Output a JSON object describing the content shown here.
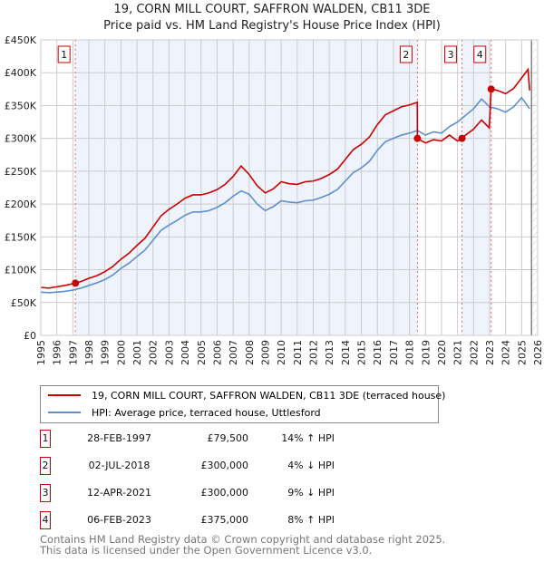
{
  "chart_data": {
    "type": "line",
    "title": "19, CORN MILL COURT, SAFFRON WALDEN, CB11 3DE",
    "subtitle": "Price paid vs. HM Land Registry's House Price Index (HPI)",
    "xlim": [
      1995,
      2026
    ],
    "ylim": [
      0,
      450000
    ],
    "x_ticks": [
      "1995",
      "1996",
      "1997",
      "1998",
      "1999",
      "2000",
      "2001",
      "2002",
      "2003",
      "2004",
      "2005",
      "2006",
      "2007",
      "2008",
      "2009",
      "2010",
      "2011",
      "2012",
      "2013",
      "2014",
      "2015",
      "2016",
      "2017",
      "2018",
      "2019",
      "2020",
      "2021",
      "2022",
      "2023",
      "2024",
      "2025",
      "2026"
    ],
    "y_ticks": [
      {
        "v": 0,
        "label": "£0"
      },
      {
        "v": 50000,
        "label": "£50K"
      },
      {
        "v": 100000,
        "label": "£100K"
      },
      {
        "v": 150000,
        "label": "£150K"
      },
      {
        "v": 200000,
        "label": "£200K"
      },
      {
        "v": 250000,
        "label": "£250K"
      },
      {
        "v": 300000,
        "label": "£300K"
      },
      {
        "v": 350000,
        "label": "£350K"
      },
      {
        "v": 400000,
        "label": "£400K"
      },
      {
        "v": 450000,
        "label": "£450K"
      }
    ],
    "data_end": 2025.5,
    "series": [
      {
        "name": "19, CORN MILL COURT, SAFFRON WALDEN, CB11 3DE (terraced house)",
        "color": "#cc0000",
        "x": [
          1995,
          1995.5,
          1996,
          1996.5,
          1997.15,
          1997.5,
          1998,
          1998.5,
          1999,
          1999.5,
          2000,
          2000.5,
          2001,
          2001.5,
          2002,
          2002.5,
          2003,
          2003.5,
          2004,
          2004.5,
          2005,
          2005.5,
          2006,
          2006.5,
          2007,
          2007.5,
          2008,
          2008.5,
          2009,
          2009.5,
          2010,
          2010.5,
          2011,
          2011.5,
          2012,
          2012.5,
          2013,
          2013.5,
          2014,
          2014.5,
          2015,
          2015.5,
          2016,
          2016.5,
          2017,
          2017.5,
          2018,
          2018.49,
          2018.5,
          2019,
          2019.5,
          2020,
          2020.5,
          2021,
          2021.28,
          2021.5,
          2022,
          2022.5,
          2022.98,
          2023.1,
          2023.5,
          2024,
          2024.5,
          2025,
          2025.4,
          2025.5
        ],
        "y": [
          73000,
          72000,
          74000,
          76000,
          79500,
          82000,
          87000,
          91000,
          97000,
          105000,
          116000,
          125000,
          137000,
          148000,
          165000,
          182000,
          192000,
          200000,
          209000,
          214000,
          214000,
          217000,
          222000,
          230000,
          242000,
          258000,
          245000,
          228000,
          217000,
          223000,
          234000,
          231000,
          230000,
          234000,
          235000,
          239000,
          245000,
          253000,
          268000,
          283000,
          291000,
          302000,
          321000,
          336000,
          342000,
          348000,
          351000,
          355000,
          300000,
          293000,
          298000,
          296000,
          305000,
          296000,
          300000,
          305000,
          314000,
          328000,
          316000,
          375000,
          373000,
          368000,
          376000,
          392000,
          405000,
          373000
        ]
      },
      {
        "name": "HPI: Average price, terraced house, Uttlesford",
        "color": "#5b8fd0",
        "x": [
          1995,
          1995.5,
          1996,
          1996.5,
          1997,
          1997.5,
          1998,
          1998.5,
          1999,
          1999.5,
          2000,
          2000.5,
          2001,
          2001.5,
          2002,
          2002.5,
          2003,
          2003.5,
          2004,
          2004.5,
          2005,
          2005.5,
          2006,
          2006.5,
          2007,
          2007.5,
          2008,
          2008.5,
          2009,
          2009.5,
          2010,
          2010.5,
          2011,
          2011.5,
          2012,
          2012.5,
          2013,
          2013.5,
          2014,
          2014.5,
          2015,
          2015.5,
          2016,
          2016.5,
          2017,
          2017.5,
          2018,
          2018.5,
          2019,
          2019.5,
          2020,
          2020.5,
          2021,
          2021.5,
          2022,
          2022.5,
          2023,
          2023.5,
          2024,
          2024.5,
          2025,
          2025.5
        ],
        "y": [
          66000,
          65000,
          66000,
          67000,
          69000,
          72000,
          76000,
          80000,
          85000,
          92000,
          102000,
          110000,
          120000,
          130000,
          145000,
          160000,
          168000,
          175000,
          183000,
          188000,
          188000,
          190000,
          195000,
          202000,
          212000,
          220000,
          215000,
          200000,
          190000,
          196000,
          205000,
          203000,
          202000,
          205000,
          206000,
          210000,
          215000,
          222000,
          235000,
          248000,
          255000,
          265000,
          282000,
          295000,
          300000,
          305000,
          308000,
          312000,
          305000,
          310000,
          308000,
          318000,
          325000,
          335000,
          345000,
          360000,
          348000,
          345000,
          340000,
          348000,
          362000,
          345000
        ]
      }
    ],
    "sales": [
      {
        "n": "1",
        "date": "28-FEB-1997",
        "x": 1997.16,
        "price": 79500,
        "price_label": "£79,500",
        "hpi": "14% ↑ HPI"
      },
      {
        "n": "2",
        "date": "02-JUL-2018",
        "x": 2018.5,
        "price": 300000,
        "price_label": "£300,000",
        "hpi": "4% ↓ HPI"
      },
      {
        "n": "3",
        "date": "12-APR-2021",
        "x": 2021.28,
        "price": 300000,
        "price_label": "£300,000",
        "hpi": "9% ↓ HPI"
      },
      {
        "n": "4",
        "date": "06-FEB-2023",
        "x": 2023.1,
        "price": 375000,
        "price_label": "£375,000",
        "hpi": "8% ↑ HPI"
      }
    ]
  },
  "footer": {
    "line1": "Contains HM Land Registry data © Crown copyright and database right 2025.",
    "line2": "This data is licensed under the Open Government Licence v3.0."
  }
}
